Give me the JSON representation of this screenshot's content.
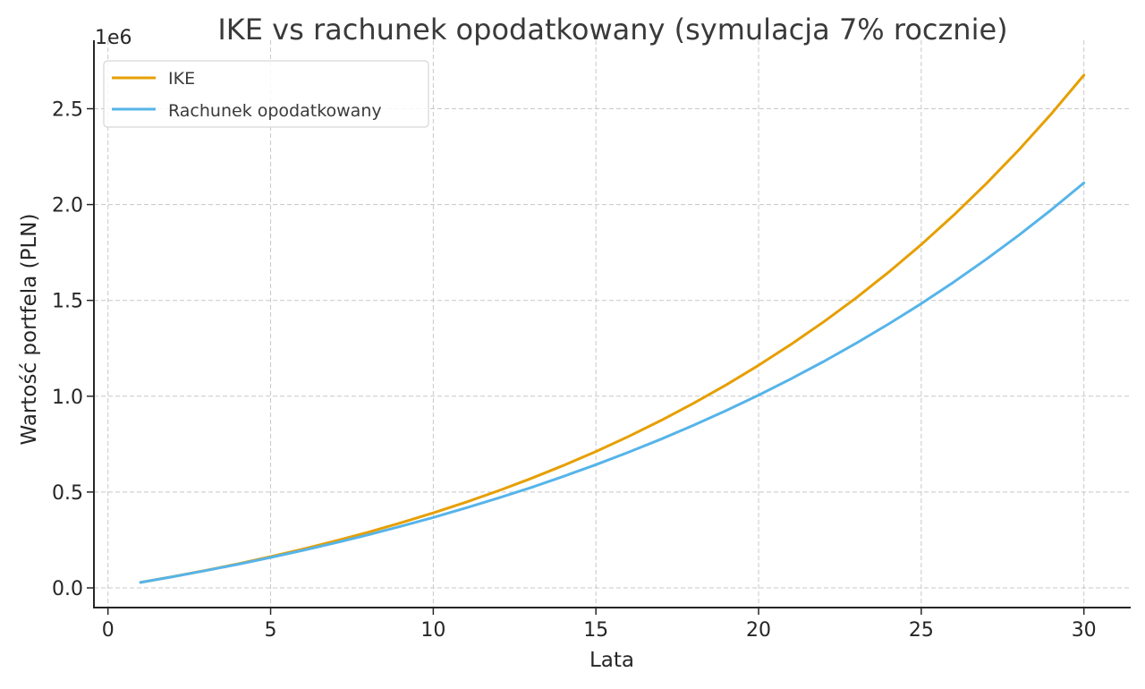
{
  "chart_data": {
    "type": "line",
    "title": "IKE vs rachunek opodatkowany (symulacja 7% rocznie)",
    "xlabel": "Lata",
    "ylabel": "Wartość portfela (PLN)",
    "y_offset_label": "1e6",
    "xlim": [
      -0.5,
      31.5
    ],
    "ylim": [
      -100000,
      2800000
    ],
    "x_ticks": [
      0,
      5,
      10,
      15,
      20,
      25,
      30
    ],
    "x_tick_labels": [
      "0",
      "5",
      "10",
      "15",
      "20",
      "25",
      "30"
    ],
    "y_ticks": [
      0,
      500000,
      1000000,
      1500000,
      2000000,
      2500000
    ],
    "y_tick_labels": [
      "0.0",
      "0.5",
      "1.0",
      "1.5",
      "2.0",
      "2.5"
    ],
    "grid": true,
    "legend_position": "upper left",
    "x": [
      1,
      2,
      3,
      4,
      5,
      6,
      7,
      8,
      9,
      10,
      11,
      12,
      13,
      14,
      15,
      16,
      17,
      18,
      19,
      20,
      21,
      22,
      23,
      24,
      25,
      26,
      27,
      28,
      29,
      30
    ],
    "series": [
      {
        "name": "IKE",
        "color": "#E69F00",
        "values": [
          28300,
          58600,
          91000,
          125700,
          162900,
          202600,
          245100,
          290600,
          339200,
          391300,
          447000,
          506600,
          570400,
          638600,
          711700,
          789800,
          873400,
          962900,
          1058600,
          1161000,
          1270600,
          1387800,
          1513300,
          1647600,
          1791200,
          1944900,
          2109400,
          2285400,
          2473600,
          2675100
        ]
      },
      {
        "name": "Rachunek opodatkowany",
        "color": "#56B4E9",
        "values": [
          28300,
          58200,
          89900,
          123300,
          158600,
          195900,
          235300,
          277000,
          321000,
          367500,
          416700,
          468600,
          523500,
          581500,
          642800,
          707600,
          776000,
          848300,
          924800,
          1005600,
          1090900,
          1181100,
          1276300,
          1377000,
          1483400,
          1595900,
          1714700,
          1840200,
          1972900,
          2113100
        ]
      }
    ]
  }
}
